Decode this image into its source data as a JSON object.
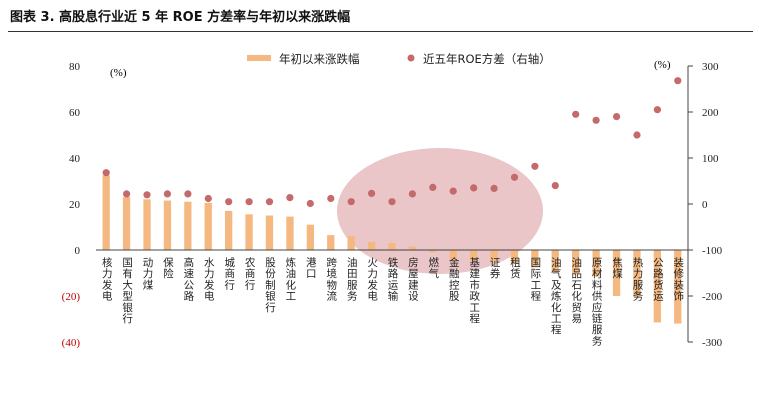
{
  "title": "图表 3. 高股息行业近 5 年 ROE 方差率与年初以来涨跌幅",
  "chart_data": {
    "type": "bar",
    "categories": [
      "核力发电",
      "国有大型银行",
      "动力煤",
      "保险",
      "高速公路",
      "水力发电",
      "城商行",
      "农商行",
      "股份制银行",
      "炼油化工",
      "港口",
      "跨境物流",
      "油田服务",
      "火力发电",
      "铁路运输",
      "房屋建设",
      "燃气",
      "金融控股",
      "基建市政工程",
      "证券",
      "租赁",
      "国际工程",
      "油气及炼化工程",
      "油品石化贸易",
      "原材料供应链服务",
      "焦煤",
      "热力服务",
      "公路货运",
      "装修装饰"
    ],
    "series": [
      {
        "name": "年初以来涨跌幅",
        "axis": "left",
        "color": "#f5b880",
        "values": [
          32.5,
          23.0,
          22.0,
          21.5,
          21.0,
          20.5,
          17.0,
          15.5,
          15.0,
          14.5,
          11.0,
          6.5,
          6.0,
          3.5,
          3.0,
          1.5,
          -1.0,
          -4.5,
          -5.0,
          -5.5,
          -6.0,
          -7.5,
          -9.5,
          -10.5,
          -11.5,
          -20.0,
          -20.5,
          -31.5,
          -32.0
        ]
      },
      {
        "name": "近五年ROE方差（右轴）",
        "axis": "right",
        "color": "#c46a6a",
        "values": [
          68,
          22,
          20,
          22,
          22,
          12,
          5,
          5,
          5,
          14,
          1,
          12,
          5,
          23,
          5,
          22,
          36,
          28,
          35,
          34,
          58,
          82,
          40,
          195,
          182,
          190,
          150,
          205,
          268
        ]
      }
    ],
    "left_axis": {
      "ylim": [
        -40,
        80
      ],
      "ticks": [
        "80",
        "60",
        "40",
        "20",
        "0",
        "(20)",
        "(40)"
      ],
      "unit": "(%)"
    },
    "right_axis": {
      "ylim": [
        -300,
        300
      ],
      "ticks": [
        "300",
        "200",
        "100",
        "0",
        "-100",
        "-200",
        "-300"
      ],
      "unit": "(%)"
    },
    "colors": {
      "bar": "#f5b880",
      "dot": "#c46a6a",
      "negative_tick": "#c00000",
      "highlight": "#d9989a"
    },
    "legend_position": "top"
  }
}
